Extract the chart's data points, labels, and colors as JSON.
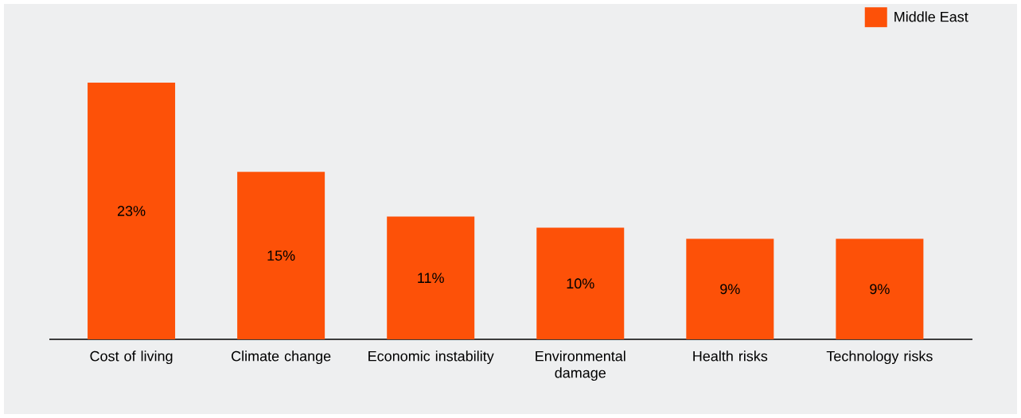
{
  "chart_data": {
    "type": "bar",
    "categories": [
      "Cost of living",
      "Climate change",
      "Economic instability",
      "Environmental damage",
      "Health risks",
      "Technology risks"
    ],
    "series": [
      {
        "name": "Middle East",
        "color": "#fd5108",
        "values": [
          23,
          15,
          11,
          10,
          9,
          9
        ],
        "value_labels": [
          "23%",
          "15%",
          "11%",
          "10%",
          "9%",
          "9%"
        ]
      }
    ],
    "legend": "top right",
    "grid": false,
    "tick_labels": "x"
  }
}
